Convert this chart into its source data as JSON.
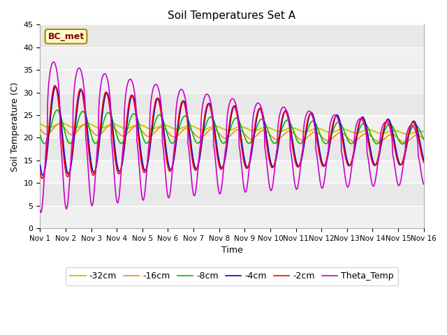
{
  "title": "Soil Temperatures Set A",
  "xlabel": "Time",
  "ylabel": "Soil Temperature (C)",
  "ylim": [
    0,
    45
  ],
  "xlim": [
    0,
    15
  ],
  "xtick_labels": [
    "Nov 1",
    "Nov 2",
    "Nov 3",
    "Nov 4",
    "Nov 5",
    "Nov 6",
    "Nov 7",
    "Nov 8",
    "Nov 9",
    "Nov 10",
    "Nov 11",
    "Nov 12",
    "Nov 13",
    "Nov 14",
    "Nov 15",
    "Nov 16"
  ],
  "ytick_vals": [
    0,
    5,
    10,
    15,
    20,
    25,
    30,
    35,
    40,
    45
  ],
  "series": {
    "-2cm": {
      "color": "#ff0000",
      "lw": 1.2
    },
    "-4cm": {
      "color": "#0000cc",
      "lw": 1.2
    },
    "-8cm": {
      "color": "#00bb00",
      "lw": 1.2
    },
    "-16cm": {
      "color": "#ff8800",
      "lw": 1.2
    },
    "-32cm": {
      "color": "#cccc00",
      "lw": 1.5
    },
    "Theta_Temp": {
      "color": "#cc00cc",
      "lw": 1.2
    }
  },
  "annotation_text": "BC_met",
  "bg_bands": [
    [
      40,
      45,
      "#e8e8e8"
    ],
    [
      30,
      40,
      "#f0f0f0"
    ],
    [
      25,
      30,
      "#e8e8e8"
    ],
    [
      20,
      25,
      "#f0f0f0"
    ],
    [
      15,
      20,
      "#e8e8e8"
    ],
    [
      10,
      15,
      "#f0f0f0"
    ],
    [
      5,
      10,
      "#e8e8e8"
    ],
    [
      0,
      5,
      "#f0f0f0"
    ]
  ],
  "plot_bg": "#e8e8e8"
}
